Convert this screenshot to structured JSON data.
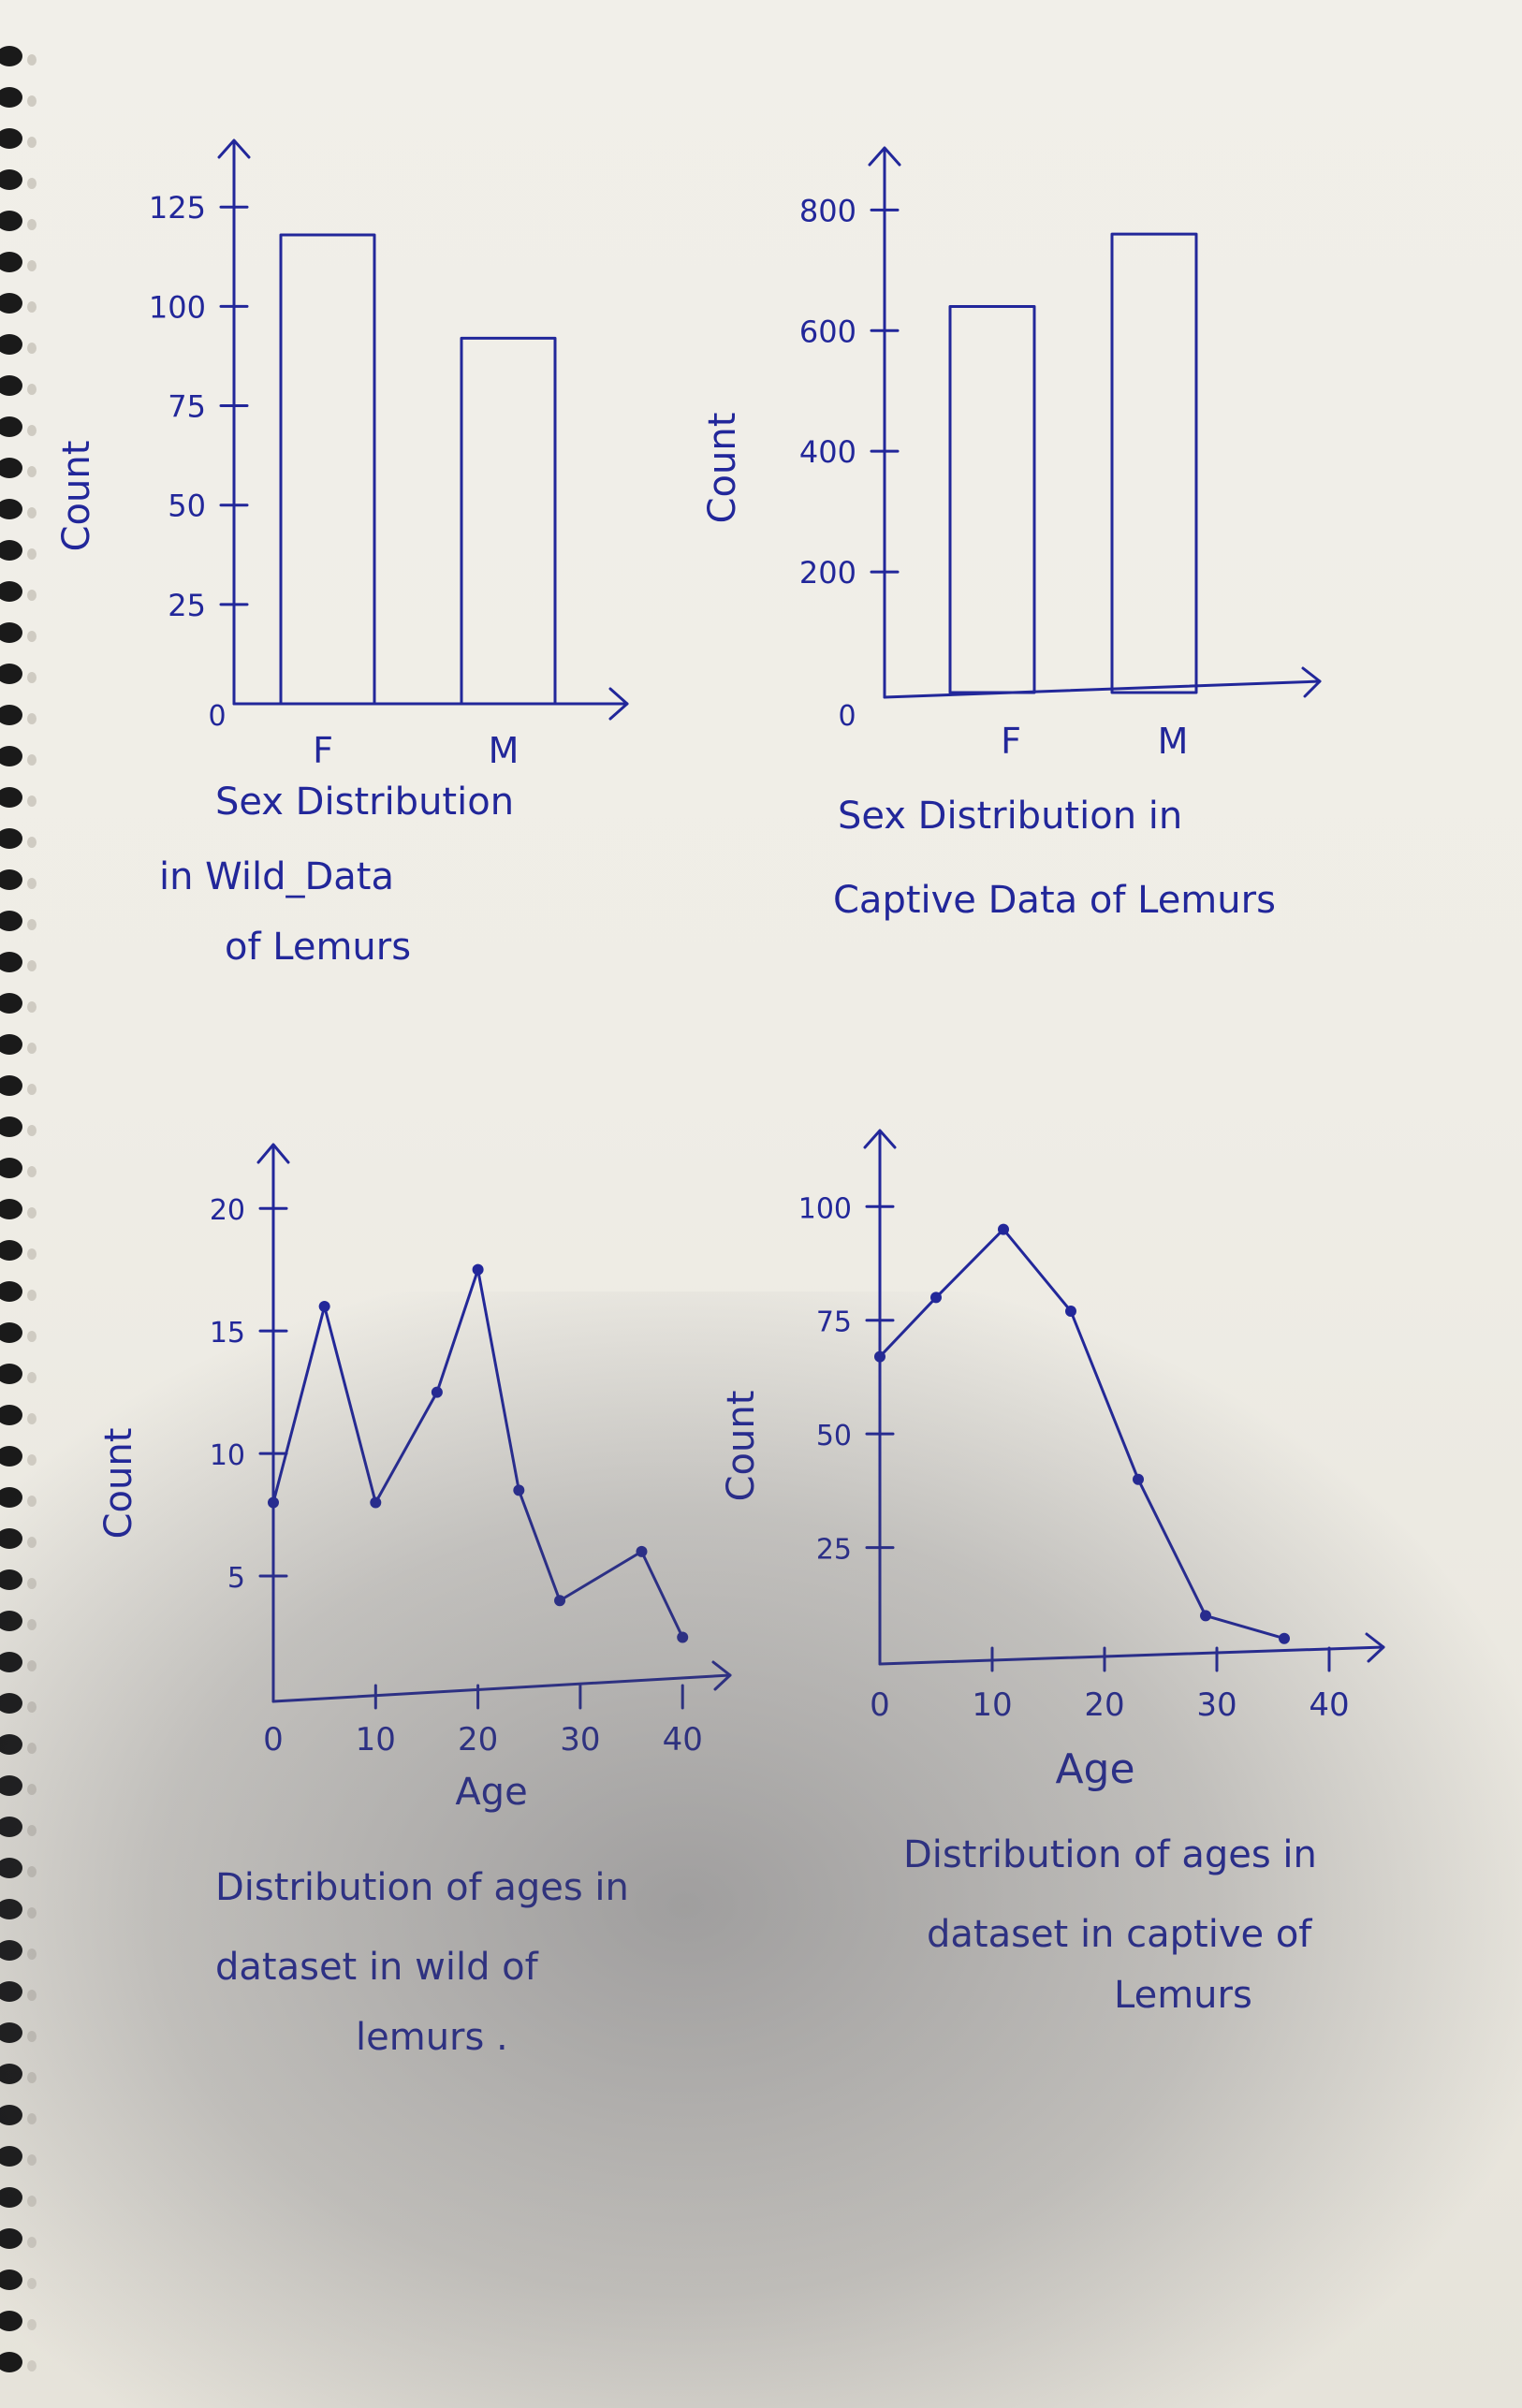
{
  "chart_data": [
    {
      "type": "bar",
      "title": "Sex Distribution in Wild_Data of Lemurs",
      "xlabel": "",
      "ylabel": "Count",
      "categories": [
        "F",
        "M"
      ],
      "values": [
        118,
        92
      ],
      "yticks": [
        0,
        25,
        50,
        75,
        100,
        125
      ],
      "ylim": [
        0,
        130
      ]
    },
    {
      "type": "bar",
      "title": "Sex Distribution in Captive Data of Lemurs",
      "xlabel": "",
      "ylabel": "Count",
      "categories": [
        "F",
        "M"
      ],
      "values": [
        640,
        760
      ],
      "yticks": [
        0,
        200,
        400,
        600,
        800
      ],
      "ylim": [
        0,
        830
      ]
    },
    {
      "type": "line",
      "title": "Distribution of ages in dataset in wild of lemurs",
      "xlabel": "Age",
      "ylabel": "Count",
      "x": [
        0,
        5,
        10,
        16,
        20,
        24,
        28,
        36,
        40
      ],
      "y": [
        8,
        16,
        8,
        12.5,
        17.5,
        8.5,
        4,
        6,
        2.5
      ],
      "xticks": [
        0,
        10,
        20,
        30,
        40
      ],
      "yticks": [
        5,
        10,
        15,
        20
      ],
      "xlim": [
        0,
        43
      ],
      "ylim": [
        0,
        21
      ]
    },
    {
      "type": "line",
      "title": "Distribution of ages in dataset in captive of lemurs",
      "xlabel": "Age",
      "ylabel": "Count",
      "x": [
        0,
        5,
        11,
        17,
        23,
        29,
        36
      ],
      "y": [
        67,
        80,
        95,
        77,
        40,
        10,
        5
      ],
      "xticks": [
        0,
        10,
        20,
        30,
        40
      ],
      "yticks": [
        25,
        50,
        75,
        100
      ],
      "tick_labels_y": [
        "25",
        "50",
        "75",
        "100"
      ],
      "xlim": [
        0,
        45
      ],
      "ylim": [
        0,
        105
      ]
    }
  ],
  "labels": {
    "c1_title": [
      "Sex Distribution",
      "in Wild_Data",
      "of Lemurs"
    ],
    "c2_title": [
      "Sex Distribution in",
      "Captive Data of Lemurs"
    ],
    "c3_title": [
      "Distribution of ages in",
      "dataset in wild of",
      "lemurs ."
    ],
    "c4_title": [
      "Distribution of ages in",
      "dataset in captive of",
      "Lemurs"
    ]
  },
  "colors": {
    "ink": "#22279a",
    "paper": "#efede6"
  }
}
